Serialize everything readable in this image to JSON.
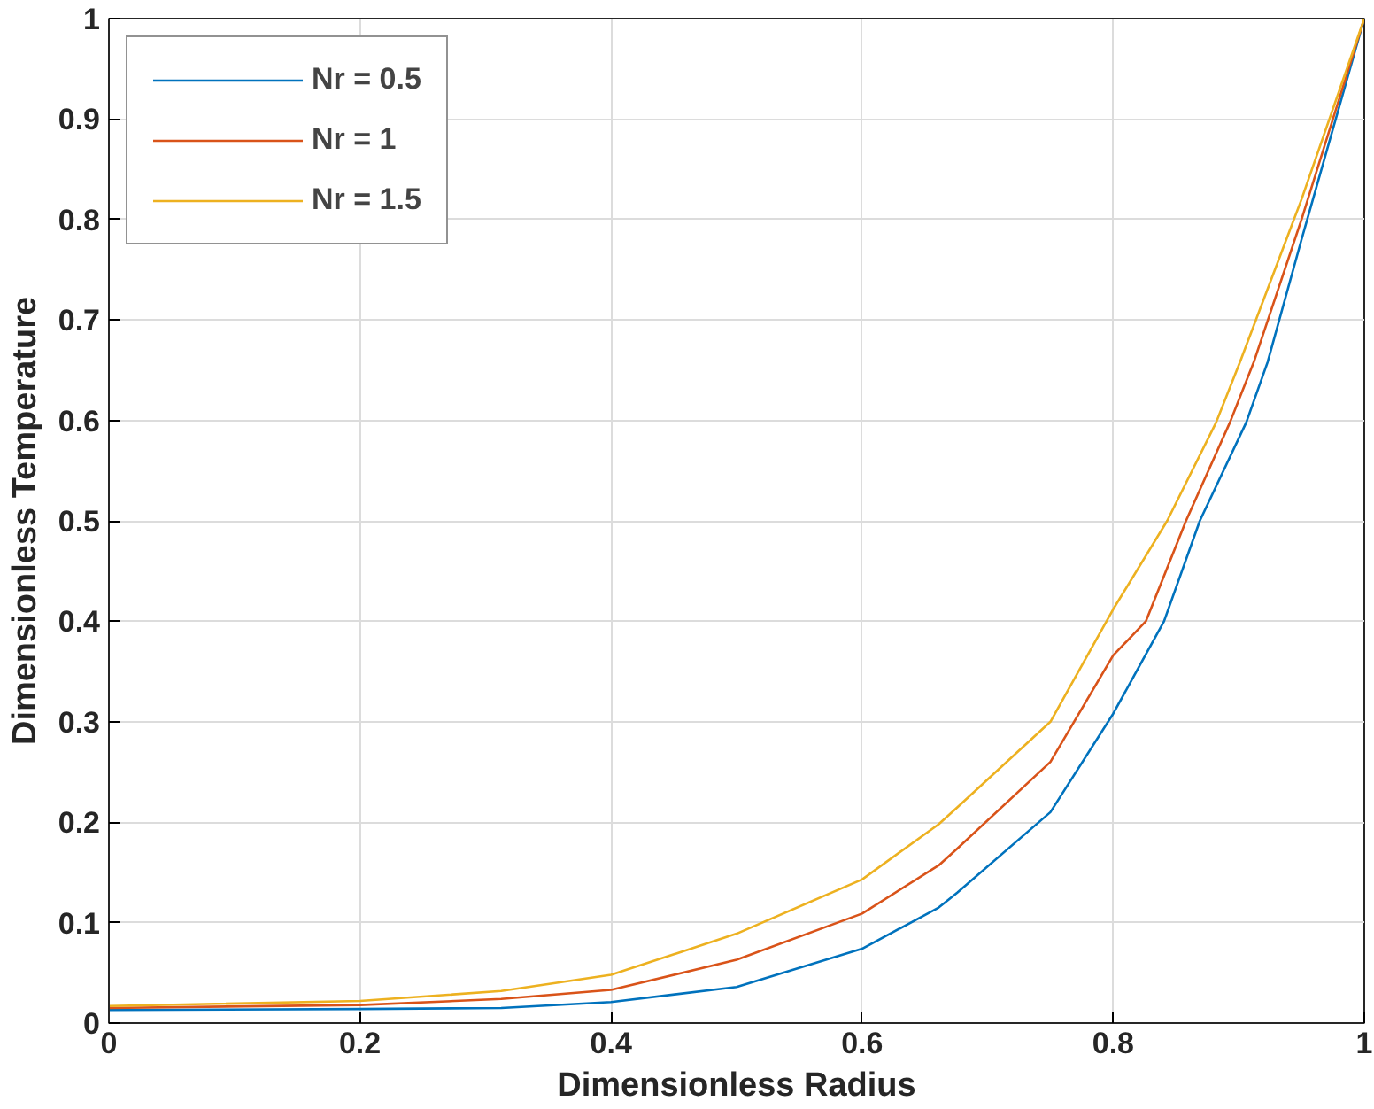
{
  "chart_data": {
    "type": "line",
    "xlabel": "Dimensionless Radius",
    "ylabel": "Dimensionless Temperature",
    "xlim": [
      0,
      1
    ],
    "ylim": [
      0,
      1
    ],
    "xticks": [
      0,
      0.2,
      0.4,
      0.6,
      0.8,
      1
    ],
    "yticks": [
      0,
      0.1,
      0.2,
      0.3,
      0.4,
      0.5,
      0.6,
      0.7,
      0.8,
      0.9,
      1
    ],
    "grid": true,
    "legend": "top left",
    "series": [
      {
        "name": "Nr = 0.5",
        "color": "#0072bd",
        "x": [
          0,
          0.2,
          0.3125,
          0.4,
          0.5,
          0.6,
          0.661,
          0.676,
          0.75,
          0.8,
          0.8405,
          0.869,
          0.906,
          0.923,
          0.95,
          1
        ],
        "values": [
          0.013,
          0.014,
          0.015,
          0.021,
          0.036,
          0.074,
          0.115,
          0.13,
          0.21,
          0.308,
          0.4,
          0.5,
          0.598,
          0.658,
          0.78,
          1
        ]
      },
      {
        "name": "Nr = 1",
        "color": "#d95319",
        "x": [
          0,
          0.2,
          0.3125,
          0.4,
          0.5,
          0.6,
          0.661,
          0.676,
          0.75,
          0.8,
          0.826,
          0.858,
          0.893,
          0.912,
          0.95,
          1
        ],
        "values": [
          0.015,
          0.018,
          0.024,
          0.033,
          0.063,
          0.109,
          0.157,
          0.174,
          0.26,
          0.366,
          0.4,
          0.5,
          0.598,
          0.658,
          0.8,
          1
        ]
      },
      {
        "name": "Nr = 1.5",
        "color": "#edb120",
        "x": [
          0,
          0.2,
          0.3125,
          0.4,
          0.5,
          0.6,
          0.661,
          0.676,
          0.75,
          0.8,
          0.843,
          0.882,
          0.901,
          0.95,
          1
        ],
        "values": [
          0.017,
          0.022,
          0.032,
          0.048,
          0.089,
          0.143,
          0.198,
          0.215,
          0.3,
          0.412,
          0.5,
          0.598,
          0.658,
          0.82,
          1
        ]
      }
    ]
  }
}
